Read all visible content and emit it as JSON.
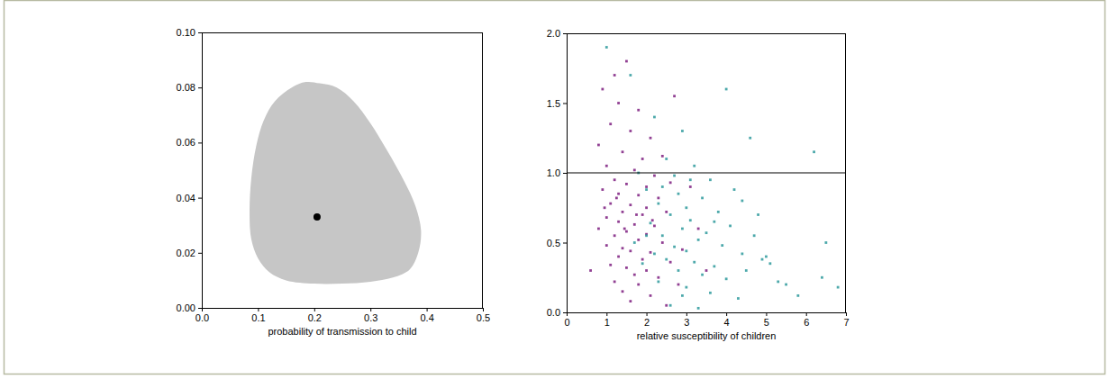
{
  "chart_data": [
    {
      "type": "scatter",
      "x_label": "probability of transmission to child",
      "xlim": [
        0,
        0.5
      ],
      "xticks": [
        {
          "value": 0,
          "label": "0.0"
        },
        {
          "value": 0.1,
          "label": "0.1"
        },
        {
          "value": 0.2,
          "label": "0.2"
        },
        {
          "value": 0.3,
          "label": "0.3"
        },
        {
          "value": 0.4,
          "label": "0.4"
        },
        {
          "value": 0.5,
          "label": "0.5"
        }
      ],
      "ylim": [
        0,
        0.1
      ],
      "yticks": [
        {
          "value": 0,
          "label": "0.00"
        },
        {
          "value": 0.02,
          "label": "0.02"
        },
        {
          "value": 0.04,
          "label": "0.04"
        },
        {
          "value": 0.06,
          "label": "0.06"
        },
        {
          "value": 0.08,
          "label": "0.08"
        },
        {
          "value": 0.1,
          "label": "0.10"
        }
      ],
      "series": [
        {
          "type": "area",
          "color": "#c6c6c6",
          "x": [
            0.21,
            0.24,
            0.27,
            0.3,
            0.33,
            0.36,
            0.38,
            0.39,
            0.385,
            0.37,
            0.34,
            0.3,
            0.25,
            0.2,
            0.15,
            0.12,
            0.1,
            0.088,
            0.085,
            0.088,
            0.097,
            0.11,
            0.13,
            0.16,
            0.185
          ],
          "values": [
            0.0815,
            0.08,
            0.075,
            0.067,
            0.057,
            0.046,
            0.037,
            0.028,
            0.02,
            0.014,
            0.011,
            0.0095,
            0.0088,
            0.0088,
            0.01,
            0.013,
            0.018,
            0.025,
            0.035,
            0.047,
            0.059,
            0.068,
            0.075,
            0.08,
            0.082
          ]
        },
        {
          "type": "scatter",
          "color": "#000000",
          "marker": "circle",
          "x": [
            0.205
          ],
          "values": [
            0.033
          ]
        }
      ]
    },
    {
      "type": "scatter",
      "x_label": "relative susceptibility of children",
      "xlim": [
        0,
        7
      ],
      "xticks": [
        0,
        1,
        2,
        3,
        4,
        5,
        6,
        7
      ],
      "ylim": [
        0,
        2
      ],
      "yticks": [
        {
          "value": 0,
          "label": "0.0"
        },
        {
          "value": 0.5,
          "label": "0.5"
        },
        {
          "value": 1,
          "label": "1.0"
        },
        {
          "value": 1.5,
          "label": "1.5"
        },
        {
          "value": 2,
          "label": "2.0"
        }
      ],
      "series": [
        {
          "type": "scatter",
          "color": "#7e1e80",
          "marker": "square",
          "x": [
            1.2,
            1.5,
            0.9,
            1.3,
            1.8,
            2.7,
            1.1,
            1.6,
            2.1,
            0.8,
            1.4,
            1.9,
            2.4,
            1.0,
            1.7,
            2.2,
            1.2,
            1.5,
            2.0,
            2.6,
            0.9,
            1.3,
            1.8,
            2.3,
            1.1,
            1.6,
            2.0,
            1.4,
            1.9,
            2.5,
            1.0,
            1.3,
            1.7,
            2.2,
            0.8,
            1.5,
            2.0,
            1.2,
            1.8,
            2.4,
            1.0,
            1.4,
            1.6,
            2.1,
            1.3,
            1.9,
            2.6,
            1.1,
            1.5,
            2.0,
            0.6,
            1.7,
            2.3,
            1.2,
            1.8,
            2.8,
            1.4,
            2.1,
            1.6,
            2.5,
            3.1,
            3.3,
            2.9,
            3.5,
            1.25,
            1.75,
            2.15,
            1.45,
            0.95
          ],
          "values": [
            1.7,
            1.8,
            1.6,
            1.5,
            1.45,
            1.55,
            1.35,
            1.3,
            1.25,
            1.2,
            1.15,
            1.1,
            1.12,
            1.05,
            1.02,
            0.98,
            0.95,
            0.92,
            0.9,
            0.93,
            0.88,
            0.85,
            0.84,
            0.82,
            0.78,
            0.77,
            0.75,
            0.72,
            0.7,
            0.72,
            0.68,
            0.65,
            0.63,
            0.62,
            0.6,
            0.58,
            0.56,
            0.55,
            0.52,
            0.5,
            0.48,
            0.46,
            0.44,
            0.43,
            0.4,
            0.38,
            0.36,
            0.34,
            0.32,
            0.3,
            0.3,
            0.27,
            0.25,
            0.22,
            0.2,
            0.2,
            0.15,
            0.12,
            0.08,
            0.05,
            0.9,
            0.6,
            0.45,
            0.3,
            0.82,
            0.7,
            0.66,
            0.6,
            0.75
          ]
        },
        {
          "type": "scatter",
          "color": "#2e9a9c",
          "marker": "square",
          "x": [
            1.0,
            1.6,
            2.2,
            2.9,
            4.0,
            4.6,
            6.2,
            2.5,
            3.2,
            1.8,
            2.7,
            3.6,
            2.0,
            2.8,
            3.4,
            4.2,
            4.4,
            2.3,
            3.0,
            3.8,
            2.6,
            3.1,
            4.1,
            2.1,
            2.9,
            3.5,
            4.7,
            2.4,
            3.3,
            3.9,
            2.7,
            3.0,
            4.4,
            5.0,
            5.1,
            2.2,
            2.5,
            3.2,
            3.7,
            4.5,
            2.8,
            3.4,
            4.0,
            5.3,
            6.5,
            6.4,
            5.8,
            2.3,
            3.0,
            3.6,
            4.3,
            2.6,
            3.3,
            5.5,
            6.8,
            1.9,
            2.0,
            2.4,
            3.7,
            4.8,
            4.9,
            2.9,
            1.7,
            3.1
          ],
          "values": [
            1.9,
            1.7,
            1.4,
            1.3,
            1.6,
            1.25,
            1.15,
            1.1,
            1.05,
            1.0,
            0.98,
            0.95,
            0.88,
            0.85,
            0.82,
            0.88,
            0.8,
            0.78,
            0.75,
            0.72,
            0.7,
            0.66,
            0.62,
            0.64,
            0.6,
            0.57,
            0.55,
            0.55,
            0.52,
            0.48,
            0.47,
            0.44,
            0.42,
            0.4,
            0.35,
            0.42,
            0.38,
            0.36,
            0.33,
            0.3,
            0.3,
            0.27,
            0.24,
            0.22,
            0.5,
            0.25,
            0.12,
            0.22,
            0.18,
            0.14,
            0.1,
            0.05,
            0.03,
            0.2,
            0.18,
            0.35,
            0.55,
            0.9,
            0.65,
            0.7,
            0.38,
            0.12,
            0.5,
            0.95
          ]
        },
        {
          "type": "line",
          "color": "#000000",
          "x": [
            0,
            7
          ],
          "values": [
            1,
            1
          ]
        }
      ]
    }
  ]
}
